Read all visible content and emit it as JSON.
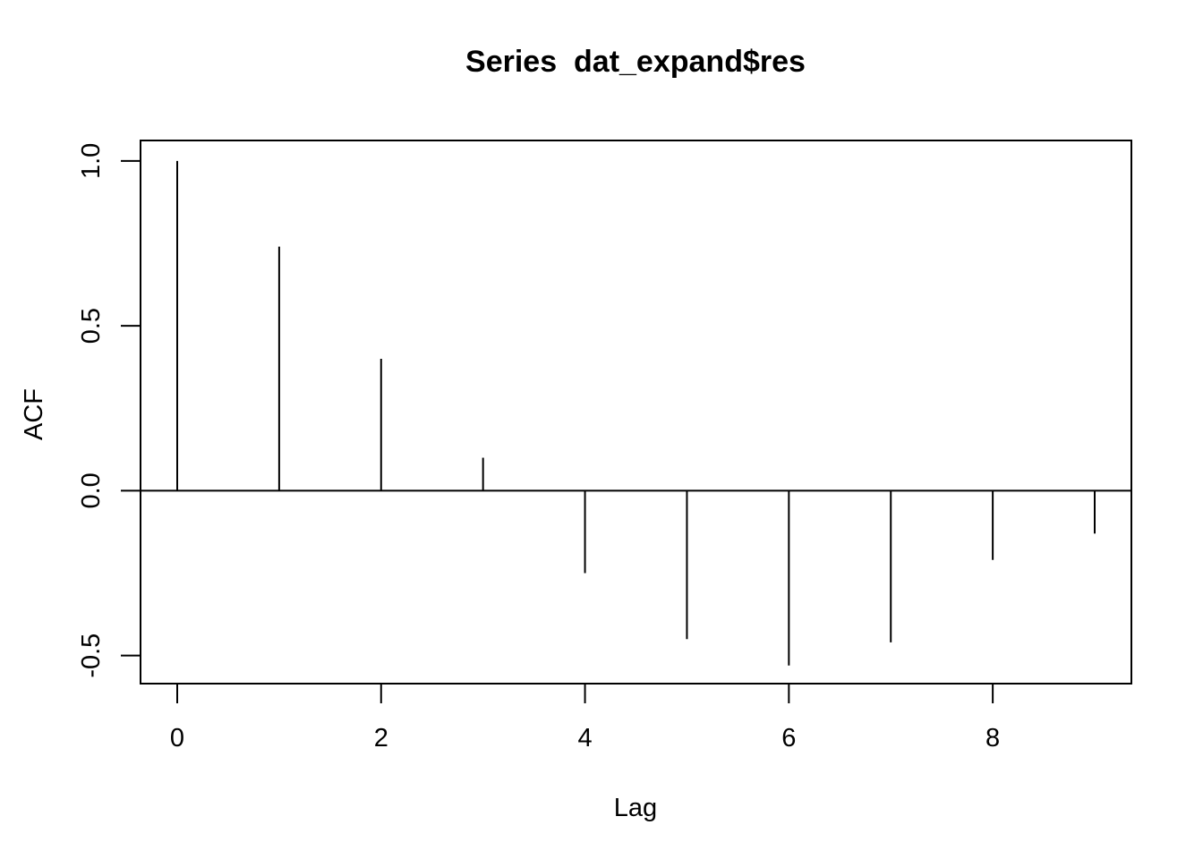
{
  "chart_data": {
    "type": "bar",
    "title": "Series  dat_expand$res",
    "xlabel": "Lag",
    "ylabel": "ACF",
    "x": [
      0,
      1,
      2,
      3,
      4,
      5,
      6,
      7,
      8,
      9
    ],
    "values": [
      1.0,
      0.74,
      0.4,
      0.1,
      -0.25,
      -0.45,
      -0.53,
      -0.46,
      -0.21,
      -0.13
    ],
    "xlim": [
      -0.36,
      9.36
    ],
    "ylim": [
      -0.585,
      1.062
    ],
    "xticks": [
      0,
      2,
      4,
      6,
      8
    ],
    "xtick_labels": [
      "0",
      "2",
      "4",
      "6",
      "8"
    ],
    "yticks": [
      -0.5,
      0.0,
      0.5,
      1.0
    ],
    "ytick_labels": [
      "-0.5",
      "0.0",
      "0.5",
      "1.0"
    ],
    "zero_line": 0,
    "grid": false,
    "colors": {
      "bars": "#000000",
      "axes": "#000000",
      "background": "#ffffff"
    }
  }
}
